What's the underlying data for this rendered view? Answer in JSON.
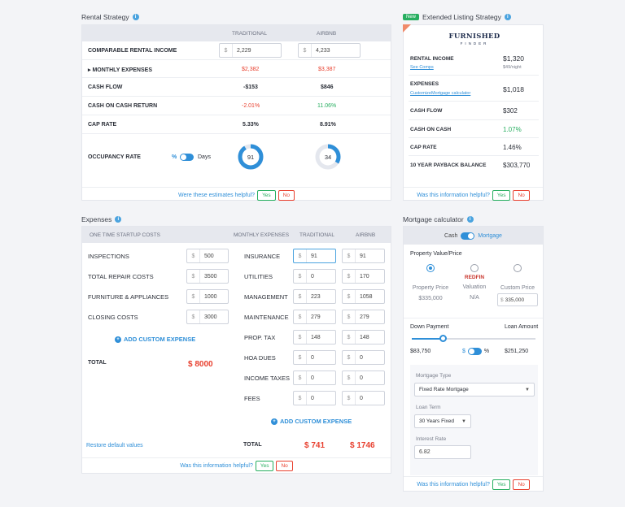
{
  "rental": {
    "title": "Rental Strategy",
    "col_traditional": "TRADITIONAL",
    "col_airbnb": "AIRBNB",
    "rows": [
      {
        "label": "COMPARABLE RENTAL INCOME",
        "trad": "2,229",
        "air": "4,233",
        "type": "input"
      },
      {
        "label": "MONTHLY EXPENSES",
        "trad": "$2,382",
        "air": "$3,387",
        "type": "expand"
      },
      {
        "label": "CASH FLOW",
        "trad": "-$153",
        "air": "$846"
      },
      {
        "label": "CASH ON CASH RETURN",
        "trad": "-2.01%",
        "air": "11.06%"
      },
      {
        "label": "CAP RATE",
        "trad": "5.33%",
        "air": "8.91%"
      }
    ],
    "occupancy_label": "OCCUPANCY RATE",
    "toggle_percent": "%",
    "toggle_days": "Days",
    "occ_trad": "91",
    "occ_air": "34",
    "occ_trad_pct": 0.91,
    "occ_air_pct": 0.34,
    "helpful_q": "Were these estimates helpful?",
    "yes": "Yes",
    "no": "No",
    "currency": "$",
    "expand_marker": "▸"
  },
  "extended": {
    "badge": "New",
    "title": "Extended Listing Strategy",
    "logo_top": "FURNISHED",
    "logo_bottom": "FINDER",
    "rental_income_label": "RENTAL INCOME",
    "rental_income": "$1,320",
    "see_comps": "See Comps",
    "per_night": "$49/night",
    "expenses_label": "EXPENSES",
    "expenses": "$1,018",
    "customize": "Customize",
    "mortgage_calc": "Mortgage calculator",
    "cash_flow_label": "CASH FLOW",
    "cash_flow": "$302",
    "coc_label": "CASH ON CASH",
    "coc": "1.07%",
    "cap_label": "CAP RATE",
    "cap": "1.46%",
    "payback_label": "10 YEAR PAYBACK BALANCE",
    "payback": "$303,770",
    "helpful_q": "Was this information helpful?",
    "yes": "Yes",
    "no": "No"
  },
  "expenses": {
    "title": "Expenses",
    "startup_header": "ONE TIME STARTUP COSTS",
    "monthly_header": "MONTHLY EXPENSES",
    "col_traditional": "TRADITIONAL",
    "col_airbnb": "AIRBNB",
    "startup": [
      {
        "label": "INSPECTIONS",
        "value": "500"
      },
      {
        "label": "TOTAL REPAIR COSTS",
        "value": "3500"
      },
      {
        "label": "FURNITURE & APPLIANCES",
        "value": "1000"
      },
      {
        "label": "CLOSING COSTS",
        "value": "3000"
      }
    ],
    "add_custom": "ADD CUSTOM EXPENSE",
    "total_label": "TOTAL",
    "startup_total": "$ 8000",
    "monthly": [
      {
        "label": "INSURANCE",
        "trad": "91",
        "air": "91"
      },
      {
        "label": "UTILITIES",
        "trad": "0",
        "air": "170"
      },
      {
        "label": "MANAGEMENT",
        "trad": "223",
        "air": "1058"
      },
      {
        "label": "MAINTENANCE",
        "trad": "279",
        "air": "279"
      },
      {
        "label": "PROP. TAX",
        "trad": "148",
        "air": "148"
      },
      {
        "label": "HOA DUES",
        "trad": "0",
        "air": "0"
      },
      {
        "label": "INCOME TAXES",
        "trad": "0",
        "air": "0"
      },
      {
        "label": "FEES",
        "trad": "0",
        "air": "0"
      }
    ],
    "add_custom_2": "ADD CUSTOM EXPENSE",
    "restore": "Restore default values",
    "monthly_total_label": "TOTAL",
    "monthly_total_trad": "$ 741",
    "monthly_total_air": "$ 1746",
    "helpful_q": "Was this information helpful?",
    "yes": "Yes",
    "no": "No",
    "currency": "$"
  },
  "mortgage": {
    "title": "Mortgage calculator",
    "cash": "Cash",
    "mortgage": "Mortgage",
    "pv_label": "Property Value/Price",
    "opt_price": "Property Price",
    "opt_price_val": "$335,000",
    "opt_valuation": "Valuation",
    "opt_valuation_val": "N/A",
    "redfin": "REDFIN",
    "opt_custom": "Custom Price",
    "opt_custom_val": "335,000",
    "down_label": "Down Payment",
    "loan_label": "Loan Amount",
    "down_val": "$83,750",
    "dollar": "$",
    "percent": "%",
    "loan_val": "$251,250",
    "slider_fraction": 0.25,
    "type_label": "Mortgage Type",
    "type_val": "Fixed Rate Mortgage",
    "term_label": "Loan Term",
    "term_val": "30 Years Fixed",
    "rate_label": "Interest Rate",
    "rate_val": "6.82",
    "helpful_q": "Was this information helpful?",
    "yes": "Yes",
    "no": "No"
  }
}
